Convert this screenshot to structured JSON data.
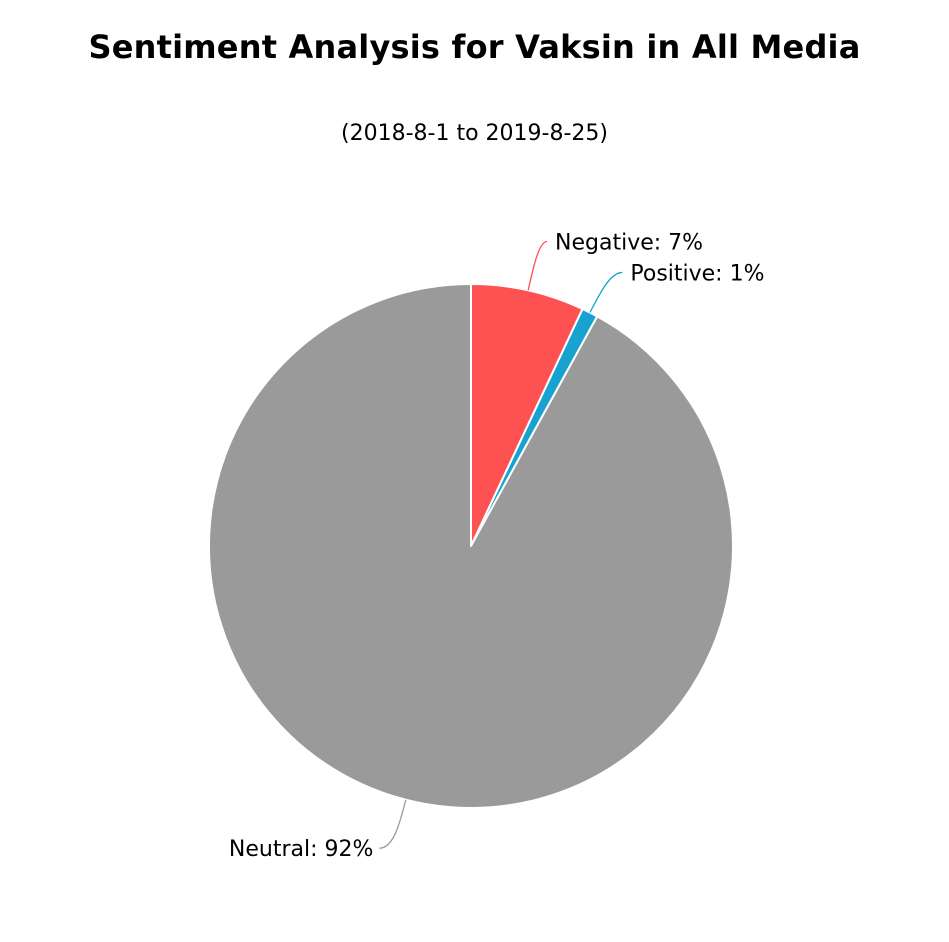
{
  "chart_data": {
    "type": "pie",
    "title": "Sentiment Analysis for Vaksin in All Media",
    "subtitle": "(2018-8-1 to 2019-8-25)",
    "slices": [
      {
        "name": "Negative",
        "value": 7,
        "label": "Negative: 7%",
        "color": "#fe5151"
      },
      {
        "name": "Positive",
        "value": 1,
        "label": "Positive: 1%",
        "color": "#17a2cf"
      },
      {
        "name": "Neutral",
        "value": 92,
        "label": "Neutral: 92%",
        "color": "#9a9a9a"
      }
    ]
  }
}
